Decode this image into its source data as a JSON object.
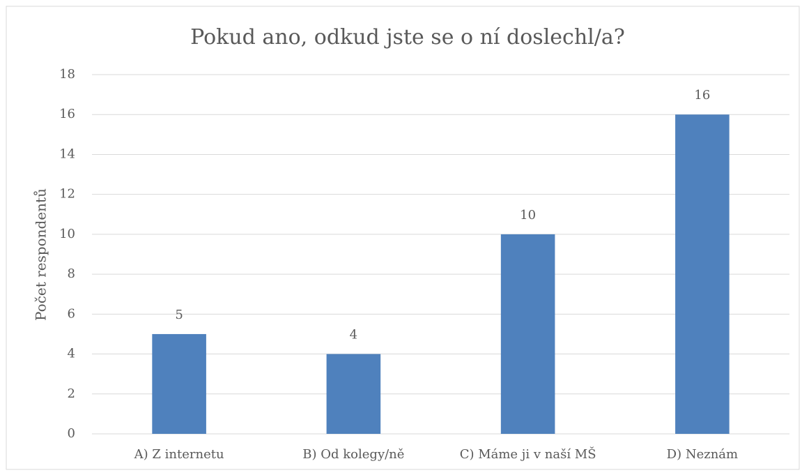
{
  "chart_data": {
    "type": "bar",
    "title": "Pokud ano, odkud jste se o ní doslechl/a?",
    "y_label": "Počet respondentů",
    "categories": [
      "A) Z internetu",
      "B) Od kolegy/ně",
      "C) Máme ji v naší MŠ",
      "D) Neznám"
    ],
    "values": [
      5,
      4,
      10,
      16
    ],
    "color": "#4f81bd",
    "ylim": [
      0,
      18
    ],
    "yticks": [
      0,
      2,
      4,
      6,
      8,
      10,
      12,
      14,
      16,
      18
    ],
    "grid": true
  }
}
